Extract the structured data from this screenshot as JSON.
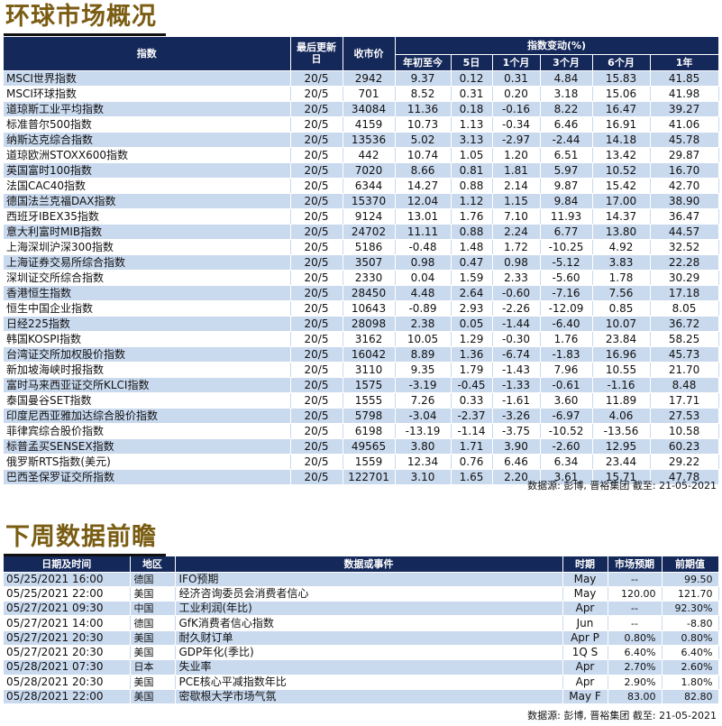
{
  "section1": {
    "title": "环球市场概况",
    "headers": {
      "index": "指数",
      "last_update": "最后更新日",
      "close": "收市价",
      "change_group": "指数变动(%)",
      "ytd": "年初至今",
      "d5": "5日",
      "m1": "1个月",
      "m3": "3个月",
      "m6": "6个月",
      "y1": "1年"
    },
    "rows": [
      {
        "name": "MSCI世界指数",
        "date": "20/5",
        "close": "2942",
        "ytd": "9.37",
        "d5": "0.12",
        "m1": "0.31",
        "m3": "4.84",
        "m6": "15.83",
        "y1": "41.85"
      },
      {
        "name": "MSCI环球指数",
        "date": "20/5",
        "close": "701",
        "ytd": "8.52",
        "d5": "0.31",
        "m1": "0.20",
        "m3": "3.18",
        "m6": "15.06",
        "y1": "41.98"
      },
      {
        "name": "道琼斯工业平均指数",
        "date": "20/5",
        "close": "34084",
        "ytd": "11.36",
        "d5": "0.18",
        "m1": "-0.16",
        "m3": "8.22",
        "m6": "16.47",
        "y1": "39.27"
      },
      {
        "name": "标准普尔500指数",
        "date": "20/5",
        "close": "4159",
        "ytd": "10.73",
        "d5": "1.13",
        "m1": "-0.34",
        "m3": "6.46",
        "m6": "16.91",
        "y1": "41.06"
      },
      {
        "name": "纳斯达克综合指数",
        "date": "20/5",
        "close": "13536",
        "ytd": "5.02",
        "d5": "3.13",
        "m1": "-2.97",
        "m3": "-2.44",
        "m6": "14.18",
        "y1": "45.78"
      },
      {
        "name": "道琼欧洲STOXX600指数",
        "date": "20/5",
        "close": "442",
        "ytd": "10.74",
        "d5": "1.05",
        "m1": "1.20",
        "m3": "6.51",
        "m6": "13.42",
        "y1": "29.87"
      },
      {
        "name": "英国富时100指数",
        "date": "20/5",
        "close": "7020",
        "ytd": "8.66",
        "d5": "0.81",
        "m1": "1.81",
        "m3": "5.97",
        "m6": "10.52",
        "y1": "16.70"
      },
      {
        "name": "法国CAC40指数",
        "date": "20/5",
        "close": "6344",
        "ytd": "14.27",
        "d5": "0.88",
        "m1": "2.14",
        "m3": "9.87",
        "m6": "15.42",
        "y1": "42.70"
      },
      {
        "name": "德国法兰克福DAX指数",
        "date": "20/5",
        "close": "15370",
        "ytd": "12.04",
        "d5": "1.12",
        "m1": "1.15",
        "m3": "9.84",
        "m6": "17.00",
        "y1": "38.90"
      },
      {
        "name": "西班牙IBEX35指数",
        "date": "20/5",
        "close": "9124",
        "ytd": "13.01",
        "d5": "1.76",
        "m1": "7.10",
        "m3": "11.93",
        "m6": "14.37",
        "y1": "36.47"
      },
      {
        "name": "意大利富时MIB指数",
        "date": "20/5",
        "close": "24702",
        "ytd": "11.11",
        "d5": "0.88",
        "m1": "2.24",
        "m3": "6.77",
        "m6": "13.80",
        "y1": "44.57"
      },
      {
        "name": "上海深圳沪深300指数",
        "date": "20/5",
        "close": "5186",
        "ytd": "-0.48",
        "d5": "1.48",
        "m1": "1.72",
        "m3": "-10.25",
        "m6": "4.92",
        "y1": "32.52"
      },
      {
        "name": "上海证券交易所综合指数",
        "date": "20/5",
        "close": "3507",
        "ytd": "0.98",
        "d5": "0.47",
        "m1": "0.98",
        "m3": "-5.12",
        "m6": "3.83",
        "y1": "22.28"
      },
      {
        "name": "深圳证交所综合指数",
        "date": "20/5",
        "close": "2330",
        "ytd": "0.04",
        "d5": "1.59",
        "m1": "2.33",
        "m3": "-5.60",
        "m6": "1.78",
        "y1": "30.29"
      },
      {
        "name": "香港恒生指数",
        "date": "20/5",
        "close": "28450",
        "ytd": "4.48",
        "d5": "2.64",
        "m1": "-0.60",
        "m3": "-7.16",
        "m6": "7.56",
        "y1": "17.18"
      },
      {
        "name": "恒生中国企业指数",
        "date": "20/5",
        "close": "10643",
        "ytd": "-0.89",
        "d5": "2.93",
        "m1": "-2.26",
        "m3": "-12.09",
        "m6": "0.85",
        "y1": "8.05"
      },
      {
        "name": "日经225指数",
        "date": "20/5",
        "close": "28098",
        "ytd": "2.38",
        "d5": "0.05",
        "m1": "-1.44",
        "m3": "-6.40",
        "m6": "10.07",
        "y1": "36.72"
      },
      {
        "name": "韩国KOSPI指数",
        "date": "20/5",
        "close": "3162",
        "ytd": "10.05",
        "d5": "1.29",
        "m1": "-0.30",
        "m3": "1.76",
        "m6": "23.84",
        "y1": "58.25"
      },
      {
        "name": "台湾证交所加权股价指数",
        "date": "20/5",
        "close": "16042",
        "ytd": "8.89",
        "d5": "1.36",
        "m1": "-6.74",
        "m3": "-1.83",
        "m6": "16.96",
        "y1": "45.73"
      },
      {
        "name": "新加坡海峡时报指数",
        "date": "20/5",
        "close": "3110",
        "ytd": "9.35",
        "d5": "1.79",
        "m1": "-1.43",
        "m3": "7.96",
        "m6": "10.55",
        "y1": "21.70"
      },
      {
        "name": "富时马来西亚证交所KLCI指数",
        "date": "20/5",
        "close": "1575",
        "ytd": "-3.19",
        "d5": "-0.45",
        "m1": "-1.33",
        "m3": "-0.61",
        "m6": "-1.16",
        "y1": "8.48"
      },
      {
        "name": "泰国曼谷SET指数",
        "date": "20/5",
        "close": "1555",
        "ytd": "7.26",
        "d5": "0.33",
        "m1": "-1.61",
        "m3": "3.60",
        "m6": "11.89",
        "y1": "17.71"
      },
      {
        "name": "印度尼西亚雅加达综合股价指数",
        "date": "20/5",
        "close": "5798",
        "ytd": "-3.04",
        "d5": "-2.37",
        "m1": "-3.26",
        "m3": "-6.97",
        "m6": "4.06",
        "y1": "27.53"
      },
      {
        "name": "菲律宾综合股价指数",
        "date": "20/5",
        "close": "6198",
        "ytd": "-13.19",
        "d5": "-1.14",
        "m1": "-3.75",
        "m3": "-10.52",
        "m6": "-13.56",
        "y1": "10.58"
      },
      {
        "name": "标普孟买SENSEX指数",
        "date": "20/5",
        "close": "49565",
        "ytd": "3.80",
        "d5": "1.71",
        "m1": "3.90",
        "m3": "-2.60",
        "m6": "12.95",
        "y1": "60.23"
      },
      {
        "name": "俄罗斯RTS指数(美元)",
        "date": "20/5",
        "close": "1559",
        "ytd": "12.34",
        "d5": "0.76",
        "m1": "6.46",
        "m3": "6.34",
        "m6": "23.44",
        "y1": "29.22"
      },
      {
        "name": "巴西圣保罗证交所指数",
        "date": "20/5",
        "close": "122701",
        "ytd": "3.10",
        "d5": "1.65",
        "m1": "2.20",
        "m3": "3.61",
        "m6": "15.71",
        "y1": "47.78"
      }
    ],
    "source": "数据源: 彭博, 晋裕集团 截至: 21-05-2021"
  },
  "section2": {
    "title": "下周数据前瞻",
    "headers": {
      "datetime": "日期及时间",
      "region": "地区",
      "event": "数据或事件",
      "period": "时期",
      "forecast": "市场预期",
      "previous": "前期值"
    },
    "rows": [
      {
        "datetime": "05/25/2021 16:00",
        "region": "德国",
        "event": "IFO预期",
        "period": "May",
        "forecast": "--",
        "previous": "99.50"
      },
      {
        "datetime": "05/25/2021 22:00",
        "region": "美国",
        "event": "经济咨询委员会消费者信心",
        "period": "May",
        "forecast": "120.00",
        "previous": "121.70"
      },
      {
        "datetime": "05/27/2021 09:30",
        "region": "中国",
        "event": "工业利润(年比)",
        "period": "Apr",
        "forecast": "--",
        "previous": "92.30%"
      },
      {
        "datetime": "05/27/2021 14:00",
        "region": "德国",
        "event": "GfK消费者信心指数",
        "period": "Jun",
        "forecast": "--",
        "previous": "-8.80"
      },
      {
        "datetime": "05/27/2021 20:30",
        "region": "美国",
        "event": "耐久财订单",
        "period": "Apr P",
        "forecast": "0.80%",
        "previous": "0.80%"
      },
      {
        "datetime": "05/27/2021 20:30",
        "region": "美国",
        "event": "GDP年化(季比)",
        "period": "1Q S",
        "forecast": "6.40%",
        "previous": "6.40%"
      },
      {
        "datetime": "05/28/2021 07:30",
        "region": "日本",
        "event": "失业率",
        "period": "Apr",
        "forecast": "2.70%",
        "previous": "2.60%"
      },
      {
        "datetime": "05/28/2021 20:30",
        "region": "美国",
        "event": "PCE核心平减指数年比",
        "period": "Apr",
        "forecast": "2.90%",
        "previous": "1.80%"
      },
      {
        "datetime": "05/28/2021 22:00",
        "region": "美国",
        "event": "密歇根大学市场气氛",
        "period": "May F",
        "forecast": "83.00",
        "previous": "82.80"
      }
    ],
    "source": "数据源: 彭博, 晋裕集团 截至: 21-05-2021"
  }
}
